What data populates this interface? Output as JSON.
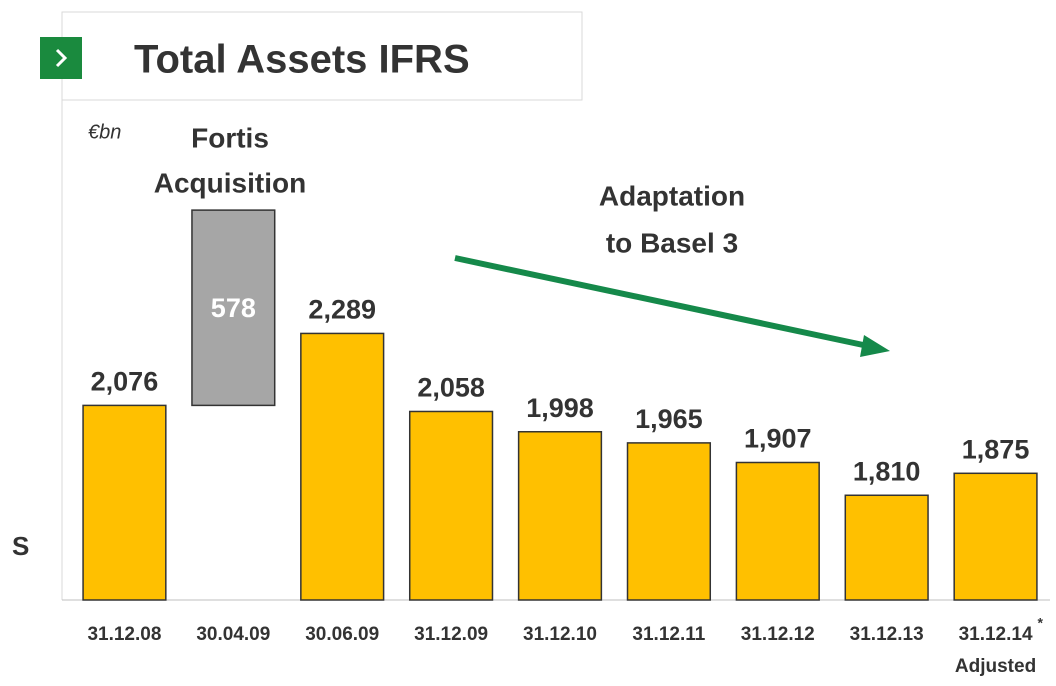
{
  "chart_data": {
    "type": "waterfall",
    "title": "Total Assets IFRS",
    "unit_label": "€bn",
    "side_label": "S",
    "categories": [
      "31.12.08",
      "30.04.09",
      "30.06.09",
      "31.12.09",
      "31.12.10",
      "31.12.11",
      "31.12.12",
      "31.12.13",
      "31.12.14"
    ],
    "category_footnote_mark": "*",
    "category_note": "Adjusted",
    "values": [
      2076,
      578,
      2289,
      2058,
      1998,
      1965,
      1907,
      1810,
      1875
    ],
    "value_labels": [
      "2,076",
      "578",
      "2,289",
      "2,058",
      "1,998",
      "1,965",
      "1,907",
      "1,810",
      "1,875"
    ],
    "kinds": [
      "total",
      "delta",
      "total",
      "total",
      "total",
      "total",
      "total",
      "total",
      "total"
    ],
    "colors": {
      "total": "#ffc000",
      "delta": "#a6a6a6"
    },
    "ylim": [
      1500,
      2900
    ],
    "annotations": {
      "fortis": [
        "Fortis",
        "Acquisition"
      ],
      "basel": [
        "Adaptation",
        "to Basel 3"
      ]
    },
    "arrow_color": "#15894a"
  }
}
